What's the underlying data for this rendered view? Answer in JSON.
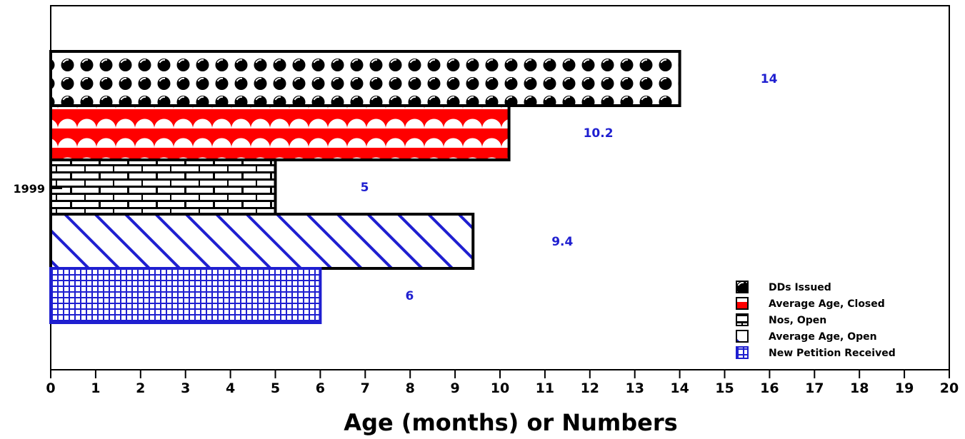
{
  "chart_data": {
    "type": "bar",
    "orientation": "horizontal",
    "title": "",
    "xlabel": "Age (months) or Numbers",
    "ylabel": "",
    "categories": [
      "1999"
    ],
    "xlim": [
      0,
      20
    ],
    "xticks": [
      "0",
      "1",
      "2",
      "3",
      "4",
      "5",
      "6",
      "7",
      "8",
      "9",
      "10",
      "11",
      "12",
      "13",
      "14",
      "15",
      "16",
      "17",
      "18",
      "19",
      "20"
    ],
    "grid": false,
    "legend_position": "bottom-right",
    "label_color": "#1f1fd0",
    "series": [
      {
        "name": "DDs Issued",
        "values": [
          14
        ],
        "label": "14",
        "pattern": "spheres",
        "color": "#000000"
      },
      {
        "name": "Average Age, Closed",
        "values": [
          10.2
        ],
        "label": "10.2",
        "pattern": "scallops",
        "color": "#ff0000"
      },
      {
        "name": "Nos, Open",
        "values": [
          5
        ],
        "label": "5",
        "pattern": "bricks",
        "color": "#000000"
      },
      {
        "name": "Average Age, Open",
        "values": [
          9.4
        ],
        "label": "9.4",
        "pattern": "diagonal-lines",
        "color": "#1f1fd0"
      },
      {
        "name": "New Petition Received",
        "values": [
          6
        ],
        "label": "6",
        "pattern": "grid",
        "color": "#1f1fd0"
      }
    ]
  }
}
